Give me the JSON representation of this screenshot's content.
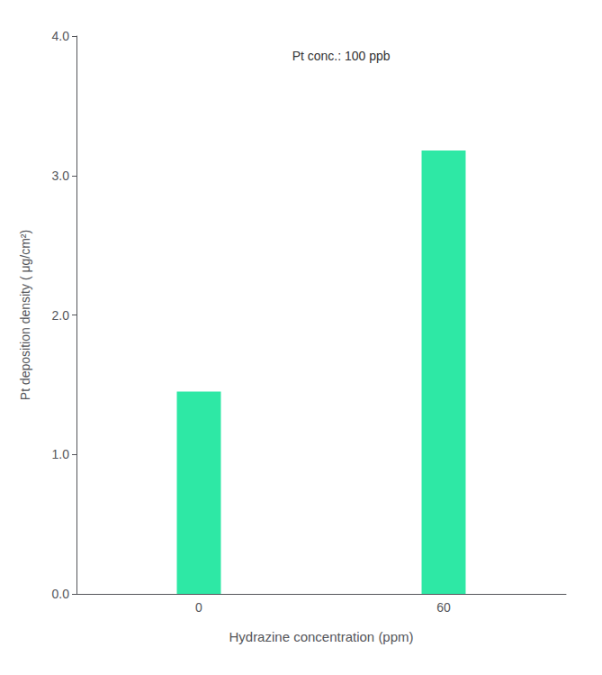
{
  "chart_data": {
    "type": "bar",
    "categories": [
      "0",
      "60"
    ],
    "values": [
      1.45,
      3.18
    ],
    "color": "#2EE8A5",
    "xlabel": "Hydrazine concentration (ppm)",
    "ylabel": "Pt deposition density ( μg/cm²)",
    "annotation": "Pt conc.: 100 ppb",
    "ylim": [
      0.0,
      4.0
    ],
    "yticks": [
      {
        "value": 0.0,
        "label": "0.0"
      },
      {
        "value": 1.0,
        "label": "1.0"
      },
      {
        "value": 2.0,
        "label": "2.0"
      },
      {
        "value": 3.0,
        "label": "3.0"
      },
      {
        "value": 4.0,
        "label": "4.0"
      }
    ],
    "grid": false
  }
}
